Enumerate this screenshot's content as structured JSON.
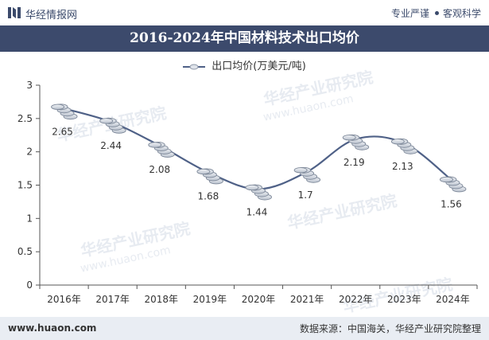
{
  "header": {
    "brand": "华经情报网",
    "tag1": "专业严谨",
    "tag2": "客观科学"
  },
  "chart_title": "2016-2024年中国材料技术出口均价",
  "footer": {
    "website": "www.huaon.com",
    "source": "数据来源：中国海关，华经产业研究院整理"
  },
  "watermark": {
    "text": "华经产业研究院",
    "url": "www.huaon.com"
  },
  "colors": {
    "header_band": "#3c4a6c",
    "line": "#4f6187",
    "footer_band": "#e9edf3"
  },
  "chart_data": {
    "type": "line",
    "title": "2016-2024年中国材料技术出口均价",
    "categories": [
      "2016年",
      "2017年",
      "2018年",
      "2019年",
      "2020年",
      "2021年",
      "2022年",
      "2023年",
      "2024年"
    ],
    "series": [
      {
        "name": "出口均价(万美元/吨)",
        "values": [
          2.65,
          2.44,
          2.08,
          1.68,
          1.44,
          1.7,
          2.19,
          2.13,
          1.56
        ]
      }
    ],
    "data_labels": [
      "2.65",
      "2.44",
      "2.08",
      "1.68",
      "1.44",
      "1.7",
      "2.19",
      "2.13",
      "1.56"
    ],
    "ylim": [
      0,
      3
    ],
    "yticks": [
      "0",
      "0.5",
      "1",
      "1.5",
      "2",
      "2.5",
      "3"
    ],
    "grid": false,
    "legend_position": "top-center",
    "marker": "coin-stack-icon",
    "smooth": true
  }
}
